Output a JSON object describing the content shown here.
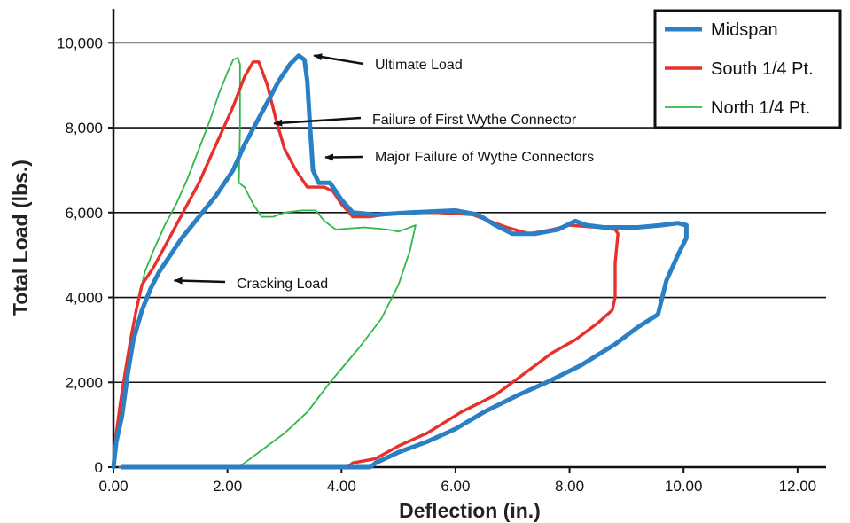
{
  "chart_data": {
    "type": "line",
    "title": "",
    "xlabel": "Deflection (in.)",
    "ylabel": "Total Load (lbs.)",
    "xlim": [
      0,
      12.5
    ],
    "ylim": [
      0,
      10800
    ],
    "x_ticks": [
      0,
      2,
      4,
      6,
      8,
      10,
      12
    ],
    "x_tick_labels": [
      "0.00",
      "2.00",
      "4.00",
      "6.00",
      "8.00",
      "10.00",
      "12.00"
    ],
    "y_ticks": [
      0,
      2000,
      4000,
      6000,
      8000,
      10000
    ],
    "y_tick_labels": [
      "0",
      "2,000",
      "4,000",
      "6,000",
      "8,000",
      "10,000"
    ],
    "grid": "horizontal",
    "legend_position": "top-right",
    "series": [
      {
        "name": "Midspan",
        "color": "#2b7fc4",
        "points": [
          [
            0.0,
            0
          ],
          [
            0.05,
            600
          ],
          [
            0.15,
            1200
          ],
          [
            0.25,
            2200
          ],
          [
            0.35,
            3000
          ],
          [
            0.5,
            3700
          ],
          [
            0.65,
            4200
          ],
          [
            0.8,
            4600
          ],
          [
            1.0,
            5000
          ],
          [
            1.2,
            5400
          ],
          [
            1.5,
            5900
          ],
          [
            1.8,
            6400
          ],
          [
            2.1,
            7000
          ],
          [
            2.3,
            7600
          ],
          [
            2.5,
            8100
          ],
          [
            2.7,
            8600
          ],
          [
            2.9,
            9100
          ],
          [
            3.1,
            9500
          ],
          [
            3.25,
            9700
          ],
          [
            3.35,
            9600
          ],
          [
            3.4,
            9100
          ],
          [
            3.45,
            8000
          ],
          [
            3.5,
            7000
          ],
          [
            3.6,
            6700
          ],
          [
            3.8,
            6700
          ],
          [
            4.0,
            6300
          ],
          [
            4.2,
            6000
          ],
          [
            4.6,
            5950
          ],
          [
            5.2,
            6000
          ],
          [
            6.0,
            6050
          ],
          [
            6.4,
            5950
          ],
          [
            6.7,
            5700
          ],
          [
            7.0,
            5500
          ],
          [
            7.4,
            5500
          ],
          [
            7.8,
            5600
          ],
          [
            8.1,
            5800
          ],
          [
            8.3,
            5700
          ],
          [
            8.6,
            5650
          ],
          [
            9.2,
            5650
          ],
          [
            9.6,
            5700
          ],
          [
            9.9,
            5750
          ],
          [
            10.05,
            5700
          ],
          [
            10.05,
            5400
          ],
          [
            9.9,
            5000
          ],
          [
            9.7,
            4400
          ],
          [
            9.55,
            3600
          ],
          [
            9.2,
            3300
          ],
          [
            8.8,
            2900
          ],
          [
            8.2,
            2400
          ],
          [
            7.6,
            2000
          ],
          [
            7.1,
            1700
          ],
          [
            6.5,
            1300
          ],
          [
            6.0,
            900
          ],
          [
            5.5,
            600
          ],
          [
            5.0,
            350
          ],
          [
            4.6,
            100
          ],
          [
            4.5,
            0
          ],
          [
            4.0,
            0
          ],
          [
            0.15,
            0
          ]
        ]
      },
      {
        "name": "South 1/4 Pt.",
        "color": "#e8302a",
        "points": [
          [
            0.0,
            0
          ],
          [
            0.05,
            800
          ],
          [
            0.12,
            1500
          ],
          [
            0.2,
            2200
          ],
          [
            0.3,
            3000
          ],
          [
            0.4,
            3700
          ],
          [
            0.5,
            4300
          ],
          [
            0.7,
            4700
          ],
          [
            0.9,
            5200
          ],
          [
            1.1,
            5700
          ],
          [
            1.3,
            6200
          ],
          [
            1.5,
            6700
          ],
          [
            1.7,
            7300
          ],
          [
            1.9,
            7900
          ],
          [
            2.1,
            8500
          ],
          [
            2.3,
            9200
          ],
          [
            2.45,
            9550
          ],
          [
            2.55,
            9550
          ],
          [
            2.7,
            9000
          ],
          [
            2.85,
            8200
          ],
          [
            3.0,
            7500
          ],
          [
            3.2,
            7000
          ],
          [
            3.4,
            6600
          ],
          [
            3.7,
            6600
          ],
          [
            3.85,
            6500
          ],
          [
            4.0,
            6200
          ],
          [
            4.2,
            5900
          ],
          [
            4.5,
            5900
          ],
          [
            5.0,
            6000
          ],
          [
            5.7,
            6000
          ],
          [
            6.3,
            5950
          ],
          [
            6.6,
            5800
          ],
          [
            6.9,
            5650
          ],
          [
            7.3,
            5500
          ],
          [
            7.7,
            5600
          ],
          [
            8.0,
            5700
          ],
          [
            8.5,
            5650
          ],
          [
            8.8,
            5600
          ],
          [
            8.85,
            5500
          ],
          [
            8.8,
            4800
          ],
          [
            8.8,
            4000
          ],
          [
            8.75,
            3700
          ],
          [
            8.5,
            3400
          ],
          [
            8.1,
            3000
          ],
          [
            7.7,
            2700
          ],
          [
            7.2,
            2200
          ],
          [
            6.7,
            1700
          ],
          [
            6.1,
            1300
          ],
          [
            5.5,
            800
          ],
          [
            5.0,
            500
          ],
          [
            4.6,
            200
          ],
          [
            4.2,
            100
          ],
          [
            4.1,
            0
          ],
          [
            0.15,
            0
          ]
        ]
      },
      {
        "name": "North 1/4 Pt.",
        "color": "#2eb84a",
        "points": [
          [
            0.0,
            0
          ],
          [
            0.05,
            900
          ],
          [
            0.15,
            1700
          ],
          [
            0.25,
            2500
          ],
          [
            0.35,
            3300
          ],
          [
            0.45,
            4000
          ],
          [
            0.55,
            4600
          ],
          [
            0.7,
            5100
          ],
          [
            0.9,
            5700
          ],
          [
            1.1,
            6200
          ],
          [
            1.3,
            6800
          ],
          [
            1.5,
            7500
          ],
          [
            1.7,
            8200
          ],
          [
            1.85,
            8800
          ],
          [
            2.0,
            9300
          ],
          [
            2.1,
            9600
          ],
          [
            2.18,
            9650
          ],
          [
            2.22,
            9500
          ],
          [
            2.22,
            8000
          ],
          [
            2.2,
            6700
          ],
          [
            2.3,
            6600
          ],
          [
            2.45,
            6200
          ],
          [
            2.6,
            5900
          ],
          [
            2.8,
            5900
          ],
          [
            3.0,
            6000
          ],
          [
            3.3,
            6050
          ],
          [
            3.55,
            6050
          ],
          [
            3.7,
            5800
          ],
          [
            3.9,
            5600
          ],
          [
            4.4,
            5650
          ],
          [
            4.8,
            5600
          ],
          [
            5.0,
            5550
          ],
          [
            5.3,
            5700
          ],
          [
            5.2,
            5100
          ],
          [
            5.0,
            4300
          ],
          [
            4.7,
            3500
          ],
          [
            4.3,
            2800
          ],
          [
            3.8,
            2000
          ],
          [
            3.4,
            1300
          ],
          [
            3.0,
            800
          ],
          [
            2.6,
            400
          ],
          [
            2.3,
            100
          ],
          [
            2.2,
            0
          ],
          [
            0.1,
            0
          ]
        ]
      }
    ],
    "annotations": [
      {
        "text": "Ultimate Load",
        "x": 3.3,
        "y": 9700
      },
      {
        "text": "Failure of First Wythe Connector",
        "x": 2.6,
        "y": 8100
      },
      {
        "text": "Major Failure of Wythe Connectors",
        "x": 3.5,
        "y": 7300
      },
      {
        "text": "Cracking Load",
        "x": 0.85,
        "y": 4400
      }
    ]
  }
}
